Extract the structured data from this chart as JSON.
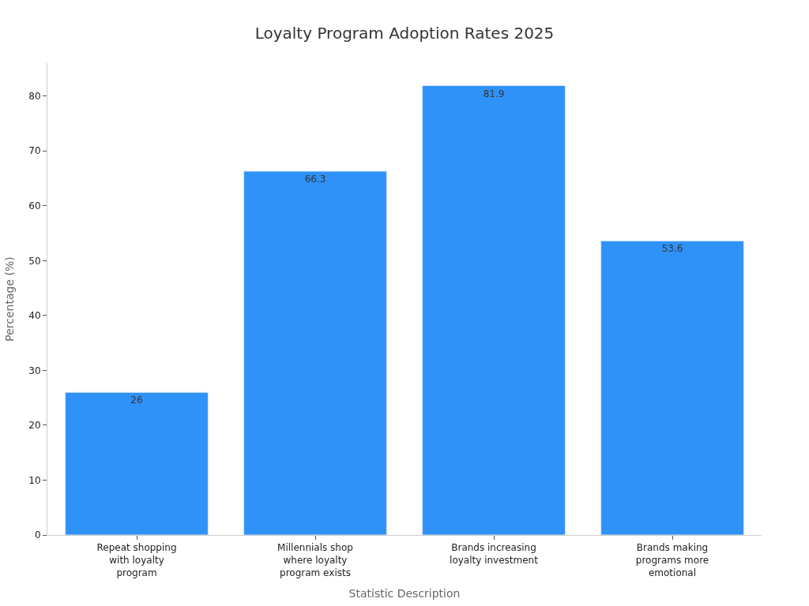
{
  "chart_data": {
    "type": "bar",
    "title": "Loyalty Program Adoption Rates 2025",
    "xlabel": "Statistic Description",
    "ylabel": "Percentage (%)",
    "categories": [
      "Repeat shopping with loyalty program",
      "Millennials shop where loyalty program exists",
      "Brands increasing loyalty investment",
      "Brands making programs more emotional"
    ],
    "values": [
      26,
      66.3,
      81.9,
      53.6
    ],
    "color": "#2f92f8",
    "data_labels": true,
    "ylim": [
      0,
      86
    ],
    "yticks": [
      0,
      10,
      20,
      30,
      40,
      50,
      60,
      70,
      80
    ]
  }
}
